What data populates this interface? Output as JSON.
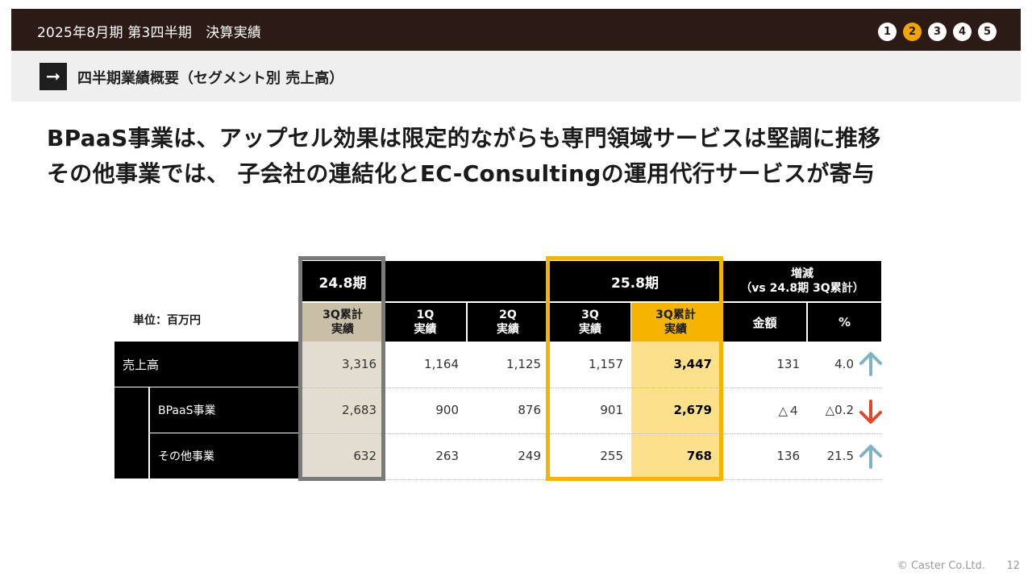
{
  "header": {
    "title": "2025年8月期 第3四半期　決算実績",
    "steps": [
      "1",
      "2",
      "3",
      "4",
      "5"
    ],
    "active_step": "2"
  },
  "section": {
    "subtitle": "四半期業績概要（セグメント別 売上高）"
  },
  "headline": {
    "line1": "BPaaS事業は、アップセル効果は限定的ながらも専門領域サービスは堅調に推移",
    "line2": "その他事業では、 子会社の連結化とEC-Consultingの運用代行サービスが寄与"
  },
  "table": {
    "unit_label": "単位：百万円",
    "period_prev": "24.8期",
    "period_curr": "25.8期",
    "change_header_1": "増減",
    "change_header_2": "（vs 24.8期 3Q累計）",
    "col_prev_cum_1": "3Q累計",
    "col_prev_cum_2": "実績",
    "col_q1_1": "1Q",
    "col_q1_2": "実績",
    "col_q2_1": "2Q",
    "col_q2_2": "実績",
    "col_q3_1": "3Q",
    "col_q3_2": "実績",
    "col_curr_cum_1": "3Q累計",
    "col_curr_cum_2": "実績",
    "col_amount": "金額",
    "col_pct": "%",
    "rows": [
      {
        "label": "売上高",
        "prev_cum": "3,316",
        "q1": "1,164",
        "q2": "1,125",
        "q3": "1,157",
        "curr_cum": "3,447",
        "amount": "131",
        "pct": "4.0",
        "trend": "up"
      },
      {
        "label": "BPaaS事業",
        "prev_cum": "2,683",
        "q1": "900",
        "q2": "876",
        "q3": "901",
        "curr_cum": "2,679",
        "amount": "△４",
        "pct": "△0.2",
        "trend": "down"
      },
      {
        "label": "その他事業",
        "prev_cum": "632",
        "q1": "263",
        "q2": "249",
        "q3": "255",
        "curr_cum": "768",
        "amount": "136",
        "pct": "21.5",
        "trend": "up"
      }
    ]
  },
  "colors": {
    "up_arrow": "#7fb3bf",
    "down_arrow": "#e0482a",
    "accent_gold": "#f5b400"
  },
  "footer": {
    "copyright": "© Caster Co.Ltd.",
    "page": "12"
  }
}
